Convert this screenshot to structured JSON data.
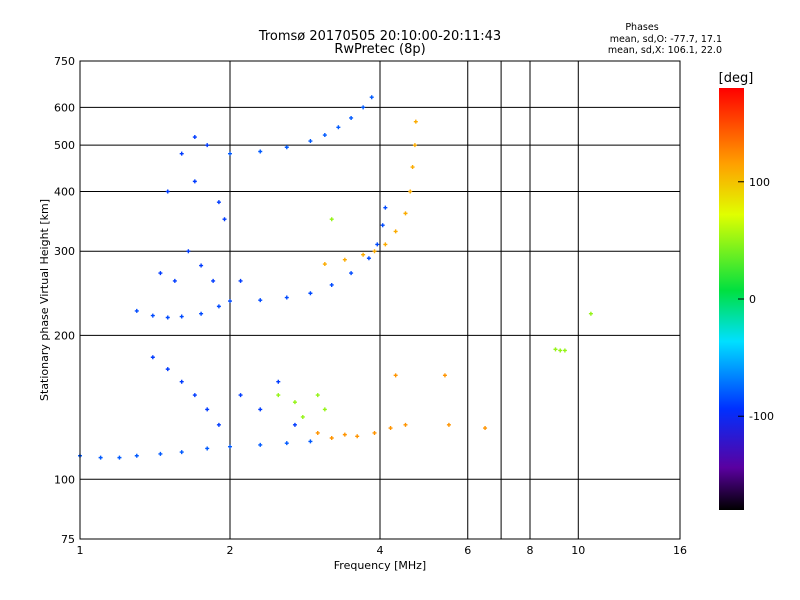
{
  "chart_data": {
    "type": "scatter",
    "title": "Tromsø 20170505 20:10:00-20:11:43",
    "subtitle": "RwPretec (8p)",
    "xlabel": "Frequency [MHz]",
    "ylabel": "Stationary phase Virtual Height [km]",
    "x_scale": "log",
    "y_scale": "log",
    "xlim": [
      1,
      16
    ],
    "ylim": [
      75,
      750
    ],
    "x_ticks": [
      1,
      2,
      4,
      6,
      8,
      10,
      16
    ],
    "x_tick_labels": [
      "1",
      "2",
      "4",
      "6",
      "8",
      "10",
      "16"
    ],
    "x_grid": [
      2,
      4,
      6,
      7,
      8,
      10
    ],
    "y_ticks": [
      75,
      100,
      200,
      300,
      400,
      500,
      600,
      750
    ],
    "y_tick_labels": [
      "75",
      "100",
      "200",
      "300",
      "400",
      "500",
      "600",
      "750"
    ],
    "y_grid": [
      100,
      200,
      300,
      400,
      500,
      600
    ],
    "phase_stats": {
      "title": "Phases",
      "line_o": "mean, sd,O: -77.7, 17.1",
      "line_x": "mean, sd,X: 106.1, 22.0"
    },
    "colorbar": {
      "label": "[deg]",
      "range": [
        -180,
        180
      ],
      "ticks": [
        100,
        0,
        -100
      ],
      "tick_labels": [
        "100",
        "0",
        "-100"
      ]
    },
    "series": [
      {
        "color_deg": -80,
        "points": [
          [
            1.0,
            112
          ],
          [
            1.1,
            111
          ],
          [
            1.2,
            111
          ],
          [
            1.3,
            112
          ],
          [
            1.45,
            113
          ],
          [
            1.6,
            114
          ],
          [
            1.8,
            116
          ],
          [
            2.0,
            117
          ],
          [
            2.3,
            118
          ],
          [
            2.6,
            119
          ],
          [
            2.9,
            120
          ]
        ]
      },
      {
        "color_deg": -85,
        "points": [
          [
            1.3,
            225
          ],
          [
            1.4,
            220
          ],
          [
            1.5,
            218
          ],
          [
            1.6,
            219
          ],
          [
            1.75,
            222
          ],
          [
            1.9,
            230
          ],
          [
            2.0,
            236
          ],
          [
            2.3,
            237
          ],
          [
            2.6,
            240
          ],
          [
            2.9,
            245
          ],
          [
            3.2,
            255
          ],
          [
            3.5,
            270
          ],
          [
            3.8,
            290
          ],
          [
            3.95,
            310
          ],
          [
            4.05,
            340
          ],
          [
            4.1,
            370
          ]
        ]
      },
      {
        "color_deg": 110,
        "points": [
          [
            3.1,
            282
          ],
          [
            3.4,
            288
          ],
          [
            3.7,
            295
          ],
          [
            3.9,
            300
          ],
          [
            4.1,
            310
          ],
          [
            4.3,
            330
          ],
          [
            4.5,
            360
          ],
          [
            4.6,
            400
          ],
          [
            4.65,
            450
          ],
          [
            4.7,
            500
          ],
          [
            4.72,
            560
          ]
        ]
      },
      {
        "color_deg": -80,
        "points": [
          [
            2.0,
            480
          ],
          [
            2.3,
            485
          ],
          [
            2.6,
            495
          ],
          [
            2.9,
            510
          ],
          [
            3.1,
            525
          ],
          [
            3.3,
            545
          ],
          [
            3.5,
            570
          ],
          [
            3.7,
            600
          ],
          [
            3.85,
            630
          ]
        ]
      },
      {
        "color_deg": -90,
        "points": [
          [
            1.4,
            180
          ],
          [
            1.5,
            170
          ],
          [
            1.6,
            160
          ],
          [
            1.7,
            150
          ],
          [
            1.8,
            140
          ],
          [
            1.9,
            130
          ],
          [
            2.1,
            150
          ],
          [
            2.3,
            140
          ],
          [
            2.5,
            160
          ],
          [
            2.7,
            130
          ],
          [
            1.45,
            270
          ],
          [
            1.55,
            260
          ],
          [
            1.65,
            300
          ],
          [
            1.75,
            280
          ],
          [
            1.85,
            260
          ],
          [
            1.95,
            350
          ],
          [
            2.1,
            260
          ],
          [
            1.5,
            400
          ],
          [
            1.7,
            420
          ],
          [
            1.9,
            380
          ],
          [
            1.6,
            480
          ],
          [
            1.7,
            520
          ],
          [
            1.8,
            500
          ]
        ]
      },
      {
        "color_deg": 120,
        "points": [
          [
            3.0,
            125
          ],
          [
            3.2,
            122
          ],
          [
            3.4,
            124
          ],
          [
            3.6,
            123
          ],
          [
            3.9,
            125
          ],
          [
            4.2,
            128
          ],
          [
            4.5,
            130
          ],
          [
            5.5,
            130
          ],
          [
            6.5,
            128
          ],
          [
            5.4,
            165
          ],
          [
            4.3,
            165
          ]
        ]
      },
      {
        "color_deg": 50,
        "points": [
          [
            2.5,
            150
          ],
          [
            2.7,
            145
          ],
          [
            2.8,
            135
          ],
          [
            3.0,
            150
          ],
          [
            3.1,
            140
          ],
          [
            3.2,
            350
          ],
          [
            9.2,
            186
          ],
          [
            9.0,
            187
          ],
          [
            9.4,
            186
          ],
          [
            10.6,
            222
          ]
        ]
      }
    ]
  }
}
